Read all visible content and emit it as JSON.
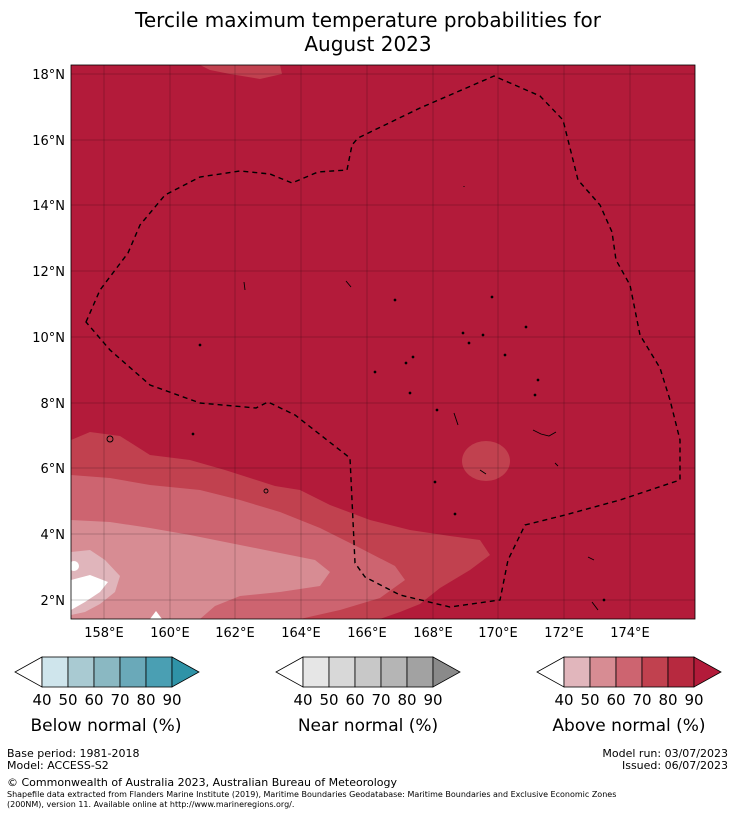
{
  "title_line1": "Tercile maximum temperature probabilities for",
  "title_line2": "August 2023",
  "map": {
    "lat_labels": [
      "18°N",
      "16°N",
      "14°N",
      "12°N",
      "10°N",
      "8°N",
      "6°N",
      "4°N",
      "2°N"
    ],
    "lon_labels": [
      "158°E",
      "160°E",
      "162°E",
      "164°E",
      "166°E",
      "168°E",
      "170°E",
      "172°E",
      "174°E"
    ],
    "colors": {
      "above_90": "#b31b3a",
      "above_80": "#c1414f",
      "above_70": "#cd6470",
      "above_60": "#d78c93",
      "above_50": "#e0b5bb",
      "below_40": "#ffffff"
    }
  },
  "colorbars": [
    {
      "label": "Below normal (%)",
      "ticks": [
        "40",
        "50",
        "60",
        "70",
        "80",
        "90"
      ],
      "colors": [
        "#ffffff",
        "#cfe5ec",
        "#a9cad2",
        "#8ab8c2",
        "#6aa9b9",
        "#4a9fb3",
        "#2f93a7"
      ]
    },
    {
      "label": "Near normal (%)",
      "ticks": [
        "40",
        "50",
        "60",
        "70",
        "80",
        "90"
      ],
      "colors": [
        "#ffffff",
        "#e6e6e6",
        "#d8d8d8",
        "#c8c8c8",
        "#b5b5b5",
        "#a2a2a2",
        "#8a8a8a"
      ]
    },
    {
      "label": "Above normal (%)",
      "ticks": [
        "40",
        "50",
        "60",
        "70",
        "80",
        "90"
      ],
      "colors": [
        "#ffffff",
        "#e1b6bc",
        "#d78c93",
        "#cd6470",
        "#c1414f",
        "#b7293f",
        "#b31b3a"
      ]
    }
  ],
  "footer": {
    "base_period": "Base period: 1981-2018",
    "model": "Model: ACCESS-S2",
    "model_run": "Model run: 03/07/2023",
    "issued": "Issued: 06/07/2023",
    "copyright": "© Commonwealth of Australia 2023, Australian Bureau of Meteorology",
    "shapefile_1": "Shapefile data extracted from Flanders Marine Institute (2019), Maritime Boundaries Geodatabase: Maritime Boundaries and Exclusive Economic Zones",
    "shapefile_2": "(200NM), version 11. Available online at http://www.marineregions.org/."
  }
}
